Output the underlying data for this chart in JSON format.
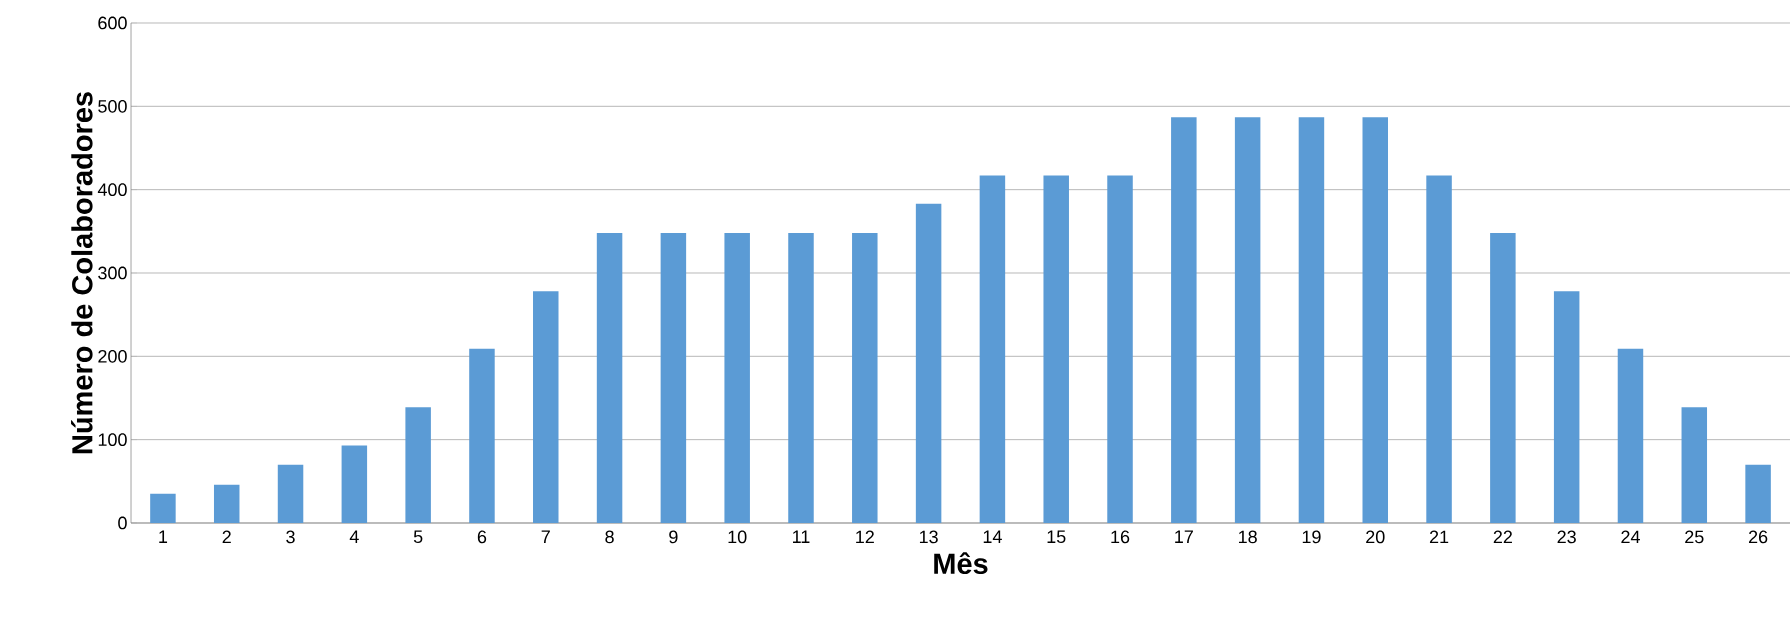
{
  "chart_data": {
    "type": "bar",
    "xlabel": "Mês",
    "ylabel": "Número de Colaboradores",
    "categories": [
      "1",
      "2",
      "3",
      "4",
      "5",
      "6",
      "7",
      "8",
      "9",
      "10",
      "11",
      "12",
      "13",
      "14",
      "15",
      "16",
      "17",
      "18",
      "19",
      "20",
      "21",
      "22",
      "23",
      "24",
      "25",
      "26"
    ],
    "values": [
      35,
      46,
      70,
      93,
      139,
      209,
      278,
      348,
      348,
      348,
      348,
      348,
      383,
      417,
      417,
      417,
      487,
      487,
      487,
      487,
      417,
      348,
      278,
      209,
      139,
      70
    ],
    "color": "#5b9bd5",
    "ylim": [
      0,
      600
    ],
    "yticks": [
      0,
      100,
      200,
      300,
      400,
      500,
      600
    ],
    "grid": "y"
  }
}
